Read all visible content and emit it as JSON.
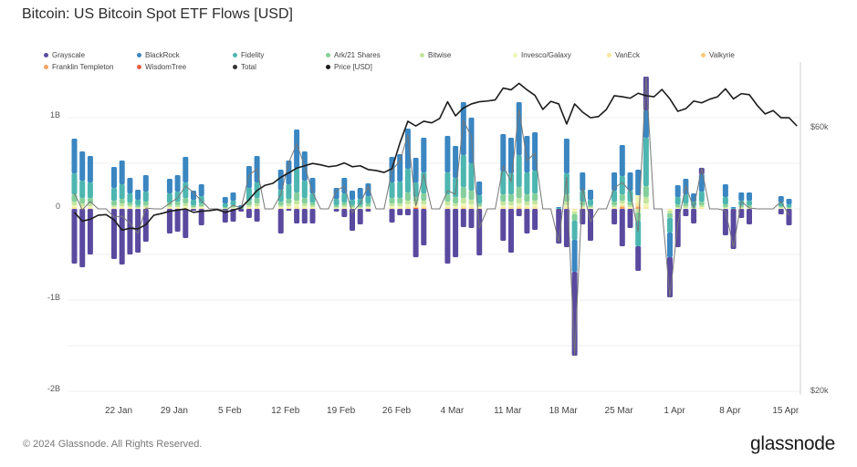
{
  "title": "Bitcoin: US Bitcoin Spot ETF Flows [USD]",
  "footer": "© 2024 Glassnode. All Rights Reserved.",
  "logo": "glassnode",
  "chart_data": {
    "type": "bar",
    "stacked": true,
    "title": "Bitcoin: US Bitcoin Spot ETF Flows [USD]",
    "units": "USD billions",
    "ylim": [
      -2,
      1.5
    ],
    "y_ticks": [
      "1B",
      "0",
      "-1B",
      "-2B"
    ],
    "y_tick_values": [
      1,
      0,
      -1,
      -2
    ],
    "y2_ticks": [
      "$60k",
      "$20k"
    ],
    "y2_tick_values": [
      60,
      20
    ],
    "y2_scale": "log",
    "x_ticks": [
      "22 Jan",
      "29 Jan",
      "5 Feb",
      "12 Feb",
      "19 Feb",
      "26 Feb",
      "4 Mar",
      "11 Mar",
      "18 Mar",
      "25 Mar",
      "1 Apr",
      "8 Apr",
      "15 Apr"
    ],
    "x_tick_dates": [
      "2024-01-22",
      "2024-01-29",
      "2024-02-05",
      "2024-02-12",
      "2024-02-19",
      "2024-02-26",
      "2024-03-04",
      "2024-03-11",
      "2024-03-18",
      "2024-03-25",
      "2024-04-01",
      "2024-04-08",
      "2024-04-15"
    ],
    "legend_position": "top-left",
    "grid": true,
    "dates": [
      "2024-01-17",
      "2024-01-18",
      "2024-01-19",
      "2024-01-22",
      "2024-01-23",
      "2024-01-24",
      "2024-01-25",
      "2024-01-26",
      "2024-01-29",
      "2024-01-30",
      "2024-01-31",
      "2024-02-01",
      "2024-02-02",
      "2024-02-05",
      "2024-02-06",
      "2024-02-07",
      "2024-02-08",
      "2024-02-09",
      "2024-02-12",
      "2024-02-13",
      "2024-02-14",
      "2024-02-15",
      "2024-02-16",
      "2024-02-19",
      "2024-02-20",
      "2024-02-21",
      "2024-02-22",
      "2024-02-23",
      "2024-02-26",
      "2024-02-27",
      "2024-02-28",
      "2024-02-29",
      "2024-03-01",
      "2024-03-04",
      "2024-03-05",
      "2024-03-06",
      "2024-03-07",
      "2024-03-08",
      "2024-03-11",
      "2024-03-12",
      "2024-03-13",
      "2024-03-14",
      "2024-03-15",
      "2024-03-18",
      "2024-03-19",
      "2024-03-20",
      "2024-03-21",
      "2024-03-22",
      "2024-03-25",
      "2024-03-26",
      "2024-03-27",
      "2024-03-28",
      "2024-03-29",
      "2024-04-01",
      "2024-04-02",
      "2024-04-03",
      "2024-04-04",
      "2024-04-05",
      "2024-04-08",
      "2024-04-09",
      "2024-04-10",
      "2024-04-11",
      "2024-04-12",
      "2024-04-15",
      "2024-04-16"
    ],
    "series": [
      {
        "key": "grayscale",
        "name": "Grayscale",
        "color": "#5a4a9f",
        "values": [
          -0.6,
          -0.64,
          -0.5,
          -0.55,
          -0.61,
          -0.5,
          -0.48,
          -0.36,
          -0.27,
          -0.25,
          -0.32,
          -0.02,
          -0.18,
          -0.15,
          -0.14,
          -0.03,
          -0.1,
          -0.14,
          -0.27,
          -0.02,
          -0.16,
          -0.16,
          -0.16,
          -0.03,
          -0.09,
          -0.24,
          -0.17,
          -0.03,
          -0.15,
          -0.07,
          -0.07,
          -0.53,
          -0.4,
          -0.6,
          -0.53,
          -0.2,
          -0.21,
          -0.51,
          -0.35,
          -0.48,
          -0.08,
          -0.27,
          -0.23,
          -0.38,
          -0.42,
          -0.92,
          -0.17,
          -0.35,
          -0.17,
          -0.41,
          -0.21,
          -0.27,
          0.37,
          -0.44,
          -0.42,
          -0.08,
          -0.16,
          0.07,
          -0.29,
          -0.44,
          -0.1,
          -0.17,
          0,
          -0.06,
          -0.18
        ]
      },
      {
        "key": "blackrock",
        "name": "BlackRock",
        "color": "#3a86c1",
        "values": [
          0.38,
          0.32,
          0.29,
          0.23,
          0.26,
          0.17,
          0.11,
          0.18,
          0.16,
          0.18,
          0.28,
          0.1,
          0.13,
          0.07,
          0.09,
          0.02,
          0.24,
          0.29,
          0.22,
          0.26,
          0.43,
          0.32,
          0.17,
          0.12,
          0.17,
          0.1,
          0.12,
          0.14,
          0.28,
          0.3,
          0.44,
          0.27,
          0.38,
          0.4,
          0.35,
          0.58,
          0.5,
          0.15,
          0.41,
          0.39,
          0.58,
          0.4,
          0.42,
          0.01,
          0.38,
          -0.35,
          0.2,
          0.11,
          0.2,
          0.34,
          0.2,
          0.28,
          0.3,
          -0.27,
          0.13,
          0.17,
          0.09,
          0.19,
          0.14,
          0.01,
          0.09,
          0.09,
          0,
          0.07,
          0.06
        ]
      },
      {
        "key": "fidelity",
        "name": "Fidelity",
        "color": "#4db6b0",
        "values": [
          0.23,
          0.19,
          0.17,
          0.14,
          0.16,
          0.1,
          0.06,
          0.11,
          0.1,
          0.11,
          0.17,
          0.06,
          0.08,
          0.04,
          0.05,
          0.01,
          0.14,
          0.17,
          0.13,
          0.16,
          0.26,
          0.19,
          0.1,
          0.07,
          0.1,
          0.06,
          0.07,
          0.08,
          0.17,
          0.18,
          0.26,
          0.16,
          0.23,
          0.24,
          0.21,
          0.35,
          0.3,
          0.09,
          0.25,
          0.23,
          0.35,
          0.24,
          0.25,
          0.01,
          0.23,
          -0.21,
          0.12,
          0.06,
          0.12,
          0.2,
          0.12,
          -0.28,
          0.53,
          -0.16,
          0.08,
          0.1,
          0.05,
          0.11,
          0.08,
          0.01,
          0.05,
          0.05,
          0,
          0.04,
          0.03
        ]
      },
      {
        "key": "ark",
        "name": "Ark/21 Shares",
        "color": "#84cf9c",
        "values": [
          0.08,
          0.06,
          0.06,
          0.05,
          0.05,
          0.03,
          0.02,
          0.04,
          0.03,
          0.04,
          0.06,
          0.02,
          0.03,
          0.01,
          0.02,
          0.01,
          0.05,
          0.06,
          0.04,
          0.05,
          0.09,
          0.06,
          0.03,
          0.02,
          0.03,
          0.02,
          0.02,
          0.03,
          0.06,
          0.06,
          0.09,
          0.05,
          0.08,
          0.08,
          0.07,
          0.12,
          0.1,
          0.03,
          0.08,
          0.08,
          0.12,
          0.08,
          0.08,
          0,
          0.08,
          -0.07,
          0.04,
          0.02,
          0.04,
          0.07,
          0.04,
          -0.09,
          0.12,
          -0.05,
          0.03,
          0.03,
          0.02,
          0.04,
          0.03,
          0,
          0.02,
          0.02,
          0,
          0.01,
          0.01
        ]
      },
      {
        "key": "bitwise",
        "name": "Bitwise",
        "color": "#c2e59f",
        "values": [
          0.04,
          0.03,
          0.03,
          0.02,
          0.03,
          0.02,
          0.01,
          0.02,
          0.02,
          0.02,
          0.03,
          0.01,
          0.01,
          0.01,
          0.01,
          0,
          0.02,
          0.03,
          0.02,
          0.03,
          0.04,
          0.03,
          0.02,
          0.01,
          0.02,
          0.01,
          0.01,
          0.01,
          0.03,
          0.03,
          0.04,
          0.03,
          0.04,
          0.04,
          0.03,
          0.06,
          0.05,
          0.01,
          0.04,
          0.04,
          0.06,
          0.04,
          0.04,
          0,
          0.04,
          -0.03,
          0.02,
          0.01,
          0.02,
          0.03,
          0.02,
          -0.04,
          0.07,
          -0.03,
          0.01,
          0.02,
          0.01,
          0.02,
          0.01,
          0,
          0.01,
          0.01,
          0,
          0.01,
          0.01
        ]
      },
      {
        "key": "invesco",
        "name": "Invesco/Galaxy",
        "color": "#eef6b4",
        "values": [
          0.02,
          0.02,
          0.02,
          0.01,
          0.02,
          0.01,
          0.01,
          0.01,
          0.01,
          0.01,
          0.02,
          0.01,
          0.01,
          0,
          0.01,
          0,
          0.01,
          0.02,
          0.01,
          0.02,
          0.03,
          0.02,
          0.01,
          0.01,
          0.01,
          0.01,
          0.01,
          0.01,
          0.02,
          0.02,
          0.03,
          0.02,
          0.02,
          0.02,
          0.02,
          0.03,
          0.03,
          0.01,
          0.02,
          0.02,
          0.03,
          0.02,
          0.03,
          0,
          0.02,
          -0.02,
          0.01,
          0.01,
          0.01,
          0.02,
          0.01,
          0.08,
          0.04,
          -0.01,
          0.01,
          0.01,
          0,
          0.01,
          0.01,
          0,
          0.01,
          0.01,
          0,
          0.01,
          0
        ]
      },
      {
        "key": "vaneck",
        "name": "VanEck",
        "color": "#fbe79c",
        "values": [
          0.02,
          0.01,
          0.01,
          0.01,
          0.01,
          0.01,
          0,
          0.01,
          0.01,
          0.01,
          0.01,
          0,
          0.01,
          0,
          0,
          0,
          0.01,
          0.01,
          0.01,
          0.01,
          0.02,
          0.01,
          0.01,
          0,
          0.01,
          0,
          0,
          0.01,
          0.01,
          0.01,
          0.02,
          0.01,
          0.02,
          0.02,
          0.01,
          0.02,
          0.02,
          0.01,
          0.02,
          0.02,
          0.02,
          0.02,
          0.02,
          0,
          0.02,
          -0.01,
          0.01,
          0,
          0.01,
          0.01,
          0.01,
          0.04,
          0.02,
          -0.01,
          0,
          0,
          0,
          0.01,
          0,
          0,
          0,
          0,
          0,
          0,
          0
        ]
      },
      {
        "key": "valkyrie",
        "name": "Valkyrie",
        "color": "#fbc877",
        "values": [
          0,
          0,
          0,
          0,
          0,
          0,
          0,
          0,
          0,
          0,
          0,
          0,
          0,
          0,
          0,
          0,
          0,
          0,
          0,
          0,
          0,
          0,
          0,
          0,
          0,
          0,
          0,
          0,
          0,
          0,
          0,
          0.01,
          0.01,
          0,
          0,
          0.01,
          0,
          0,
          0,
          0,
          0.01,
          0,
          0,
          0,
          0,
          0,
          0,
          0,
          0,
          0.01,
          0,
          0.01,
          0,
          0,
          0,
          0,
          0,
          0,
          0,
          0,
          0,
          0,
          0,
          0,
          0
        ]
      },
      {
        "key": "franklin",
        "name": "Franklin Templeton",
        "color": "#f4a261",
        "values": [
          0,
          0,
          0,
          0,
          0,
          0,
          0,
          0,
          0,
          0,
          0,
          0,
          0,
          0,
          0,
          0,
          0,
          0,
          0,
          0,
          0,
          0,
          0,
          0,
          0,
          0,
          0,
          0,
          0,
          0,
          0,
          0,
          0,
          0,
          0,
          0,
          0,
          0,
          0,
          0,
          0,
          0,
          0,
          0,
          0,
          0,
          0,
          0,
          0,
          0.02,
          0,
          0.02,
          0,
          0,
          0,
          0,
          0,
          0,
          0,
          0,
          0,
          0,
          0,
          0,
          0
        ]
      },
      {
        "key": "wisdomtree",
        "name": "WisdomTree",
        "color": "#e5603f",
        "values": [
          0,
          0,
          0,
          0,
          0,
          0,
          0,
          0,
          0,
          0,
          0,
          0,
          0,
          0,
          0,
          0,
          0,
          0,
          0,
          0,
          0,
          0,
          0,
          0,
          0,
          0,
          0,
          0,
          0,
          0,
          0,
          0.01,
          0,
          0,
          0,
          0,
          0,
          0,
          0,
          0,
          0,
          0,
          0,
          0,
          0,
          0,
          0,
          0,
          0,
          0,
          0,
          0,
          0,
          0,
          0,
          0,
          0,
          0,
          0,
          0,
          0,
          0,
          0,
          0,
          0
        ]
      }
    ],
    "total": {
      "name": "Total",
      "color": "#777777"
    },
    "price": {
      "name": "Price [USD]",
      "color": "#1c1c1c",
      "units": "USD thousands",
      "start_date": "2024-01-17",
      "values": [
        42.0,
        40.5,
        40.8,
        41.5,
        41.6,
        40.7,
        39.0,
        39.3,
        39.2,
        39.9,
        41.5,
        41.8,
        42.2,
        42.4,
        42.6,
        42.0,
        42.2,
        42.3,
        42.5,
        42.0,
        42.4,
        42.8,
        44.3,
        46.0,
        47.0,
        47.4,
        48.6,
        49.5,
        50.5,
        51.0,
        51.5,
        51.2,
        50.8,
        51.0,
        51.6,
        50.8,
        51.0,
        50.2,
        50.0,
        49.6,
        50.4,
        56.1,
        61.4,
        60.2,
        61.4,
        61.0,
        62.1,
        66.6,
        62.8,
        64.9,
        66.0,
        66.6,
        66.8,
        67.1,
        70.5,
        70.0,
        71.9,
        70.0,
        68.4,
        64.5,
        66.7,
        66.0,
        60.7,
        66.0,
        63.8,
        62.3,
        62.6,
        64.5,
        68.3,
        68.0,
        67.6,
        69.0,
        68.3,
        68.0,
        70.1,
        67.4,
        64.0,
        64.7,
        66.8,
        66.3,
        67.3,
        68.0,
        70.3,
        67.4,
        68.9,
        68.6,
        65.6,
        63.3,
        64.2,
        62.3,
        62.3,
        60.2
      ]
    },
    "legend": [
      "Grayscale",
      "BlackRock",
      "Fidelity",
      "Ark/21 Shares",
      "Bitwise",
      "Invesco/Galaxy",
      "VanEck",
      "Valkyrie",
      "Franklin Templeton",
      "WisdomTree",
      "Total",
      "Price [USD]"
    ]
  }
}
